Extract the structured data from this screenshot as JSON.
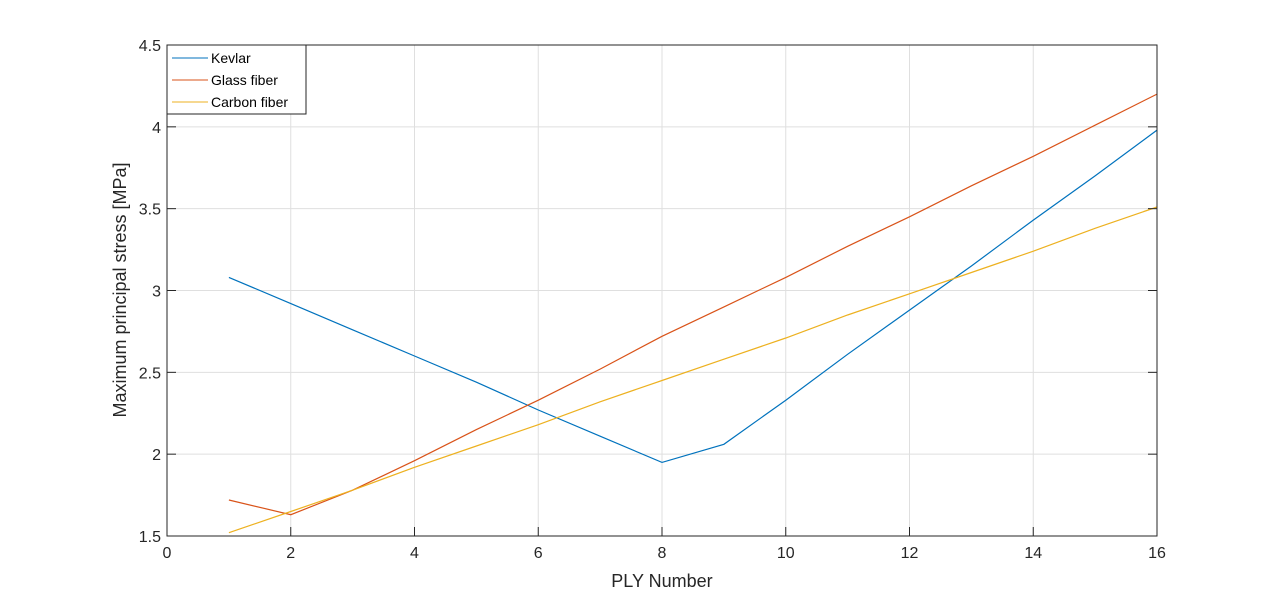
{
  "chart_data": {
    "type": "line",
    "title": "",
    "xlabel": "PLY Number",
    "ylabel": "Maximum principal stress [MPa]",
    "xlim": [
      0,
      16
    ],
    "ylim": [
      1.5,
      4.5
    ],
    "xticks": [
      0,
      2,
      4,
      6,
      8,
      10,
      12,
      14,
      16
    ],
    "yticks": [
      1.5,
      2,
      2.5,
      3,
      3.5,
      4,
      4.5
    ],
    "xtick_labels": [
      "0",
      "2",
      "4",
      "6",
      "8",
      "10",
      "12",
      "14",
      "16"
    ],
    "ytick_labels": [
      "1.5",
      "2",
      "2.5",
      "3",
      "3.5",
      "4",
      "4.5"
    ],
    "grid": true,
    "legend_position": "top-left",
    "x": [
      1,
      2,
      3,
      4,
      5,
      6,
      7,
      8,
      9,
      10,
      11,
      12,
      13,
      14,
      15,
      16
    ],
    "series": [
      {
        "name": "Kevlar",
        "color": "#0072BD",
        "values": [
          3.08,
          2.92,
          2.76,
          2.6,
          2.44,
          2.27,
          2.11,
          1.95,
          2.06,
          2.33,
          2.61,
          2.88,
          3.15,
          3.43,
          3.7,
          3.98
        ]
      },
      {
        "name": "Glass fiber",
        "color": "#D95319",
        "values": [
          1.72,
          1.63,
          1.78,
          1.96,
          2.15,
          2.33,
          2.52,
          2.72,
          2.9,
          3.08,
          3.27,
          3.45,
          3.64,
          3.82,
          4.01,
          4.2
        ]
      },
      {
        "name": "Carbon fiber",
        "color": "#EDB120",
        "values": [
          1.52,
          1.65,
          1.78,
          1.92,
          2.05,
          2.18,
          2.32,
          2.45,
          2.58,
          2.71,
          2.85,
          2.98,
          3.11,
          3.24,
          3.38,
          3.51
        ]
      }
    ]
  },
  "legend": {
    "items": [
      {
        "label": "Kevlar",
        "color": "#0072BD"
      },
      {
        "label": "Glass fiber",
        "color": "#D95319"
      },
      {
        "label": "Carbon fiber",
        "color": "#EDB120"
      }
    ]
  }
}
